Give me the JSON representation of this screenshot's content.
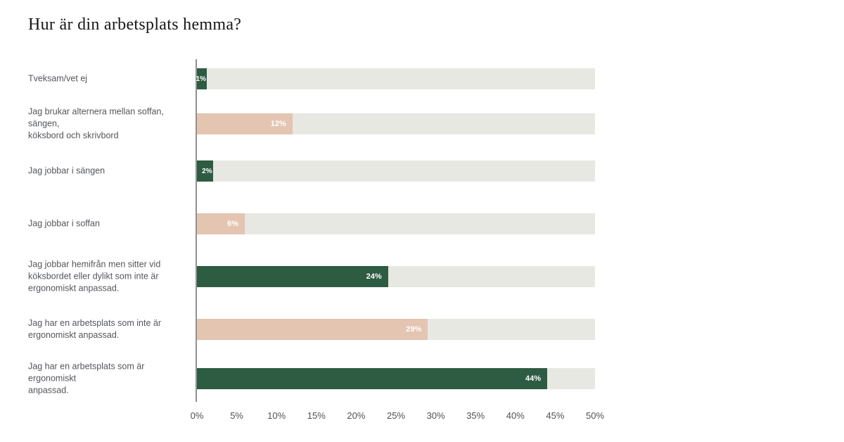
{
  "title": "Hur är din arbetsplats hemma?",
  "colors": {
    "bar_green": "#2d5c42",
    "bar_pink": "#e3c5b2",
    "track": "#e8e8e2",
    "axis_line": "#909090",
    "category_label": "#54565b",
    "tick_label": "#4e5156",
    "value_label": "#ffffff",
    "title": "#17171a",
    "background": "#ffffff"
  },
  "chart_data": {
    "type": "bar",
    "orientation": "horizontal",
    "title": "Hur är din arbetsplats hemma?",
    "xlabel": "",
    "ylabel": "",
    "xlim": [
      0,
      50
    ],
    "grid": false,
    "legend": "none",
    "categories": [
      "Tveksam/vet ej",
      "Jag brukar alternera mellan soffan, sängen,\nköksbord och skrivbord",
      "Jag jobbar i sängen",
      "Jag jobbar i soffan",
      "Jag jobbar hemifrån men sitter vid\nköksbordet eller dylikt som inte är\nergonomiskt anpassad.",
      "Jag har en arbetsplats som inte är\nergonomiskt anpassad.",
      "Jag har en arbetsplats som är ergonomiskt\nanpassad."
    ],
    "values": [
      1,
      12,
      2,
      6,
      24,
      29,
      44
    ],
    "value_labels": [
      "1%",
      "12%",
      "2%",
      "6%",
      "24%",
      "29%",
      "44%"
    ],
    "bar_colors": [
      "#2d5c42",
      "#e3c5b2",
      "#2d5c42",
      "#e3c5b2",
      "#2d5c42",
      "#e3c5b2",
      "#2d5c42"
    ],
    "x_ticks": [
      "0%",
      "5%",
      "10%",
      "15%",
      "20%",
      "25%",
      "30%",
      "35%",
      "40%",
      "45%",
      "50%"
    ]
  }
}
